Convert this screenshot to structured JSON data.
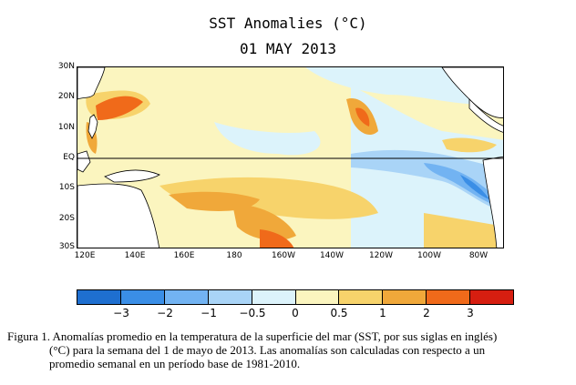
{
  "title": "SST Anomalies (°C)",
  "date": "01 MAY 2013",
  "map": {
    "lat_labels": [
      "30N",
      "20N",
      "10N",
      "EQ",
      "10S",
      "20S",
      "30S"
    ],
    "lon_labels": [
      "120E",
      "140E",
      "160E",
      "180",
      "160W",
      "140W",
      "120W",
      "100W",
      "80W"
    ],
    "equator_line": true,
    "colors": {
      "neg3": "#1e6fd0",
      "neg2": "#3a8ee6",
      "neg1": "#72b3f2",
      "neg05": "#a9d4f7",
      "zero_neg": "#dcf3fb",
      "zero_pos": "#fbf5bf",
      "pos05": "#f7d36b",
      "pos1": "#f0a83a",
      "pos2": "#f06a1a",
      "pos3": "#d61e10",
      "pos4": "#a00000",
      "land": "#ffffff"
    }
  },
  "colorbar": {
    "colors": [
      "#1e6fd0",
      "#3a8ee6",
      "#72b3f2",
      "#a9d4f7",
      "#dcf3fb",
      "#fbf5bf",
      "#f7d36b",
      "#f0a83a",
      "#f06a1a",
      "#d61e10"
    ],
    "labels": [
      "−3",
      "−2",
      "−1",
      "−0.5",
      "0",
      "0.5",
      "1",
      "2",
      "3"
    ]
  },
  "caption": {
    "line1": "Figura 1. Anomalías promedio en la temperatura de la superficie del mar (SST, por sus siglas en inglés)",
    "line2": "(°C) para la semana del 1 de mayo de 2013.   Las anomalías son calculadas con respecto a un",
    "line3": "promedio semanal en un período base de 1981-2010."
  }
}
